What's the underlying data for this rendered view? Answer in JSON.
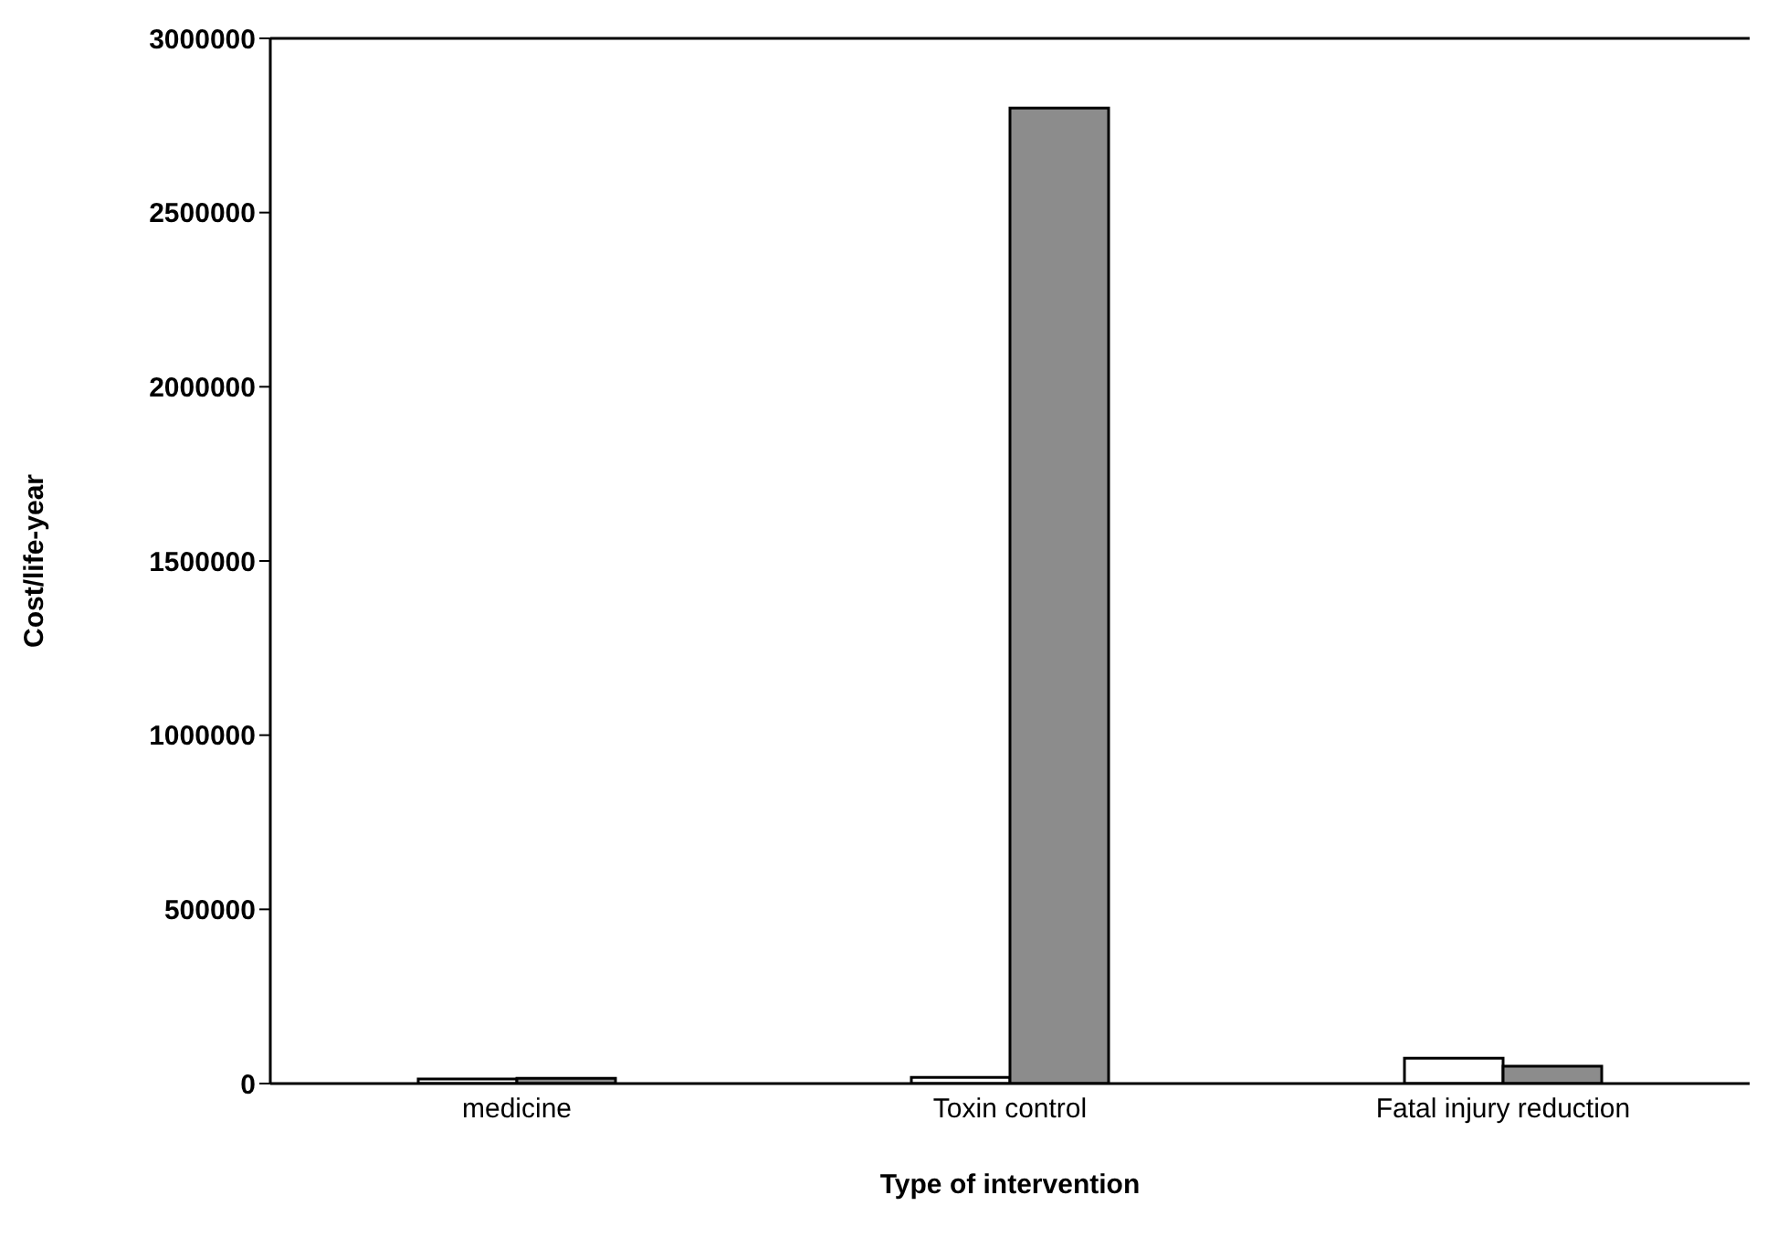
{
  "chart_data": {
    "type": "bar",
    "xlabel": "Type of intervention",
    "ylabel": "Cost/life-year",
    "categories": [
      "medicine",
      "Toxin control",
      "Fatal injury reduction"
    ],
    "series": [
      {
        "color": "#ffffff",
        "values": [
          13000,
          18000,
          73000
        ]
      },
      {
        "color": "#8c8c8c",
        "values": [
          15000,
          2800000,
          50000
        ]
      }
    ],
    "ylim": [
      0,
      3000000
    ],
    "yticks": [
      0,
      500000,
      1000000,
      1500000,
      2000000,
      2500000,
      3000000
    ],
    "grid": false,
    "legend": false
  }
}
